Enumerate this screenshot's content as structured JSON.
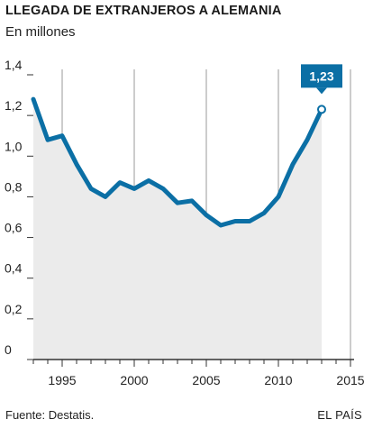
{
  "header": {
    "title": "LLEGADA DE EXTRANJEROS A ALEMANIA",
    "subtitle": "En millones"
  },
  "footer": {
    "source": "Fuente: Destatis.",
    "credit": "EL PAÍS"
  },
  "colors": {
    "line": "#0b6fa5",
    "area": "#ebebeb",
    "grid": "#999999",
    "axis": "#333333",
    "callout_bg": "#0b6fa5"
  },
  "chart_data": {
    "type": "area",
    "title": "LLEGADA DE EXTRANJEROS A ALEMANIA",
    "subtitle": "En millones",
    "xlabel": "",
    "ylabel": "",
    "x": [
      1993,
      1994,
      1995,
      1996,
      1997,
      1998,
      1999,
      2000,
      2001,
      2002,
      2003,
      2004,
      2005,
      2006,
      2007,
      2008,
      2009,
      2010,
      2011,
      2012,
      2013
    ],
    "series": [
      {
        "values": [
          1.28,
          1.08,
          1.1,
          0.96,
          0.84,
          0.8,
          0.87,
          0.84,
          0.88,
          0.84,
          0.77,
          0.78,
          0.71,
          0.66,
          0.68,
          0.68,
          0.72,
          0.8,
          0.96,
          1.08,
          1.23
        ]
      }
    ],
    "xlim": [
      1993,
      2015
    ],
    "ylim": [
      0,
      1.4
    ],
    "x_ticks": [
      "1995",
      "2000",
      "2005",
      "2010",
      "2015"
    ],
    "y_ticks": [
      "0",
      "0,2",
      "0,4",
      "0,6",
      "0,8",
      "1,0",
      "1,2",
      "1,4"
    ],
    "annotation": {
      "x": 2013,
      "label": "1,23"
    },
    "grid": "vertical"
  }
}
